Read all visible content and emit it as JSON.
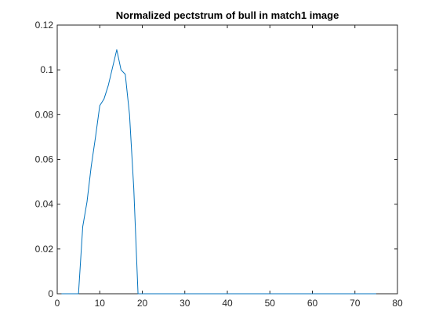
{
  "chart_data": {
    "type": "line",
    "title": "Normalized pectstrum of bull in match1 image",
    "xlabel": "",
    "ylabel": "",
    "xlim": [
      0,
      80
    ],
    "ylim": [
      0,
      0.12
    ],
    "xticks": [
      0,
      10,
      20,
      30,
      40,
      50,
      60,
      70,
      80
    ],
    "yticks": [
      0,
      0.02,
      0.04,
      0.06,
      0.08,
      0.1,
      0.12
    ],
    "ytick_labels": [
      "0",
      "0.02",
      "0.04",
      "0.06",
      "0.08",
      "0.1",
      "0.12"
    ],
    "grid": false,
    "line_color": "#0072BD",
    "series": [
      {
        "x": [
          1,
          2,
          3,
          4,
          5,
          6,
          7,
          8,
          9,
          10,
          11,
          12,
          13,
          14,
          15,
          16,
          17,
          18,
          19,
          20,
          25,
          30,
          35,
          40,
          45,
          50,
          55,
          60,
          65,
          70,
          75
        ],
        "values": [
          0,
          0,
          0,
          0,
          0,
          0.03,
          0.041,
          0.057,
          0.07,
          0.084,
          0.087,
          0.093,
          0.101,
          0.109,
          0.1,
          0.098,
          0.08,
          0.047,
          0,
          0,
          0,
          0,
          0,
          0,
          0,
          0,
          0,
          0,
          0,
          0,
          0
        ]
      }
    ]
  }
}
